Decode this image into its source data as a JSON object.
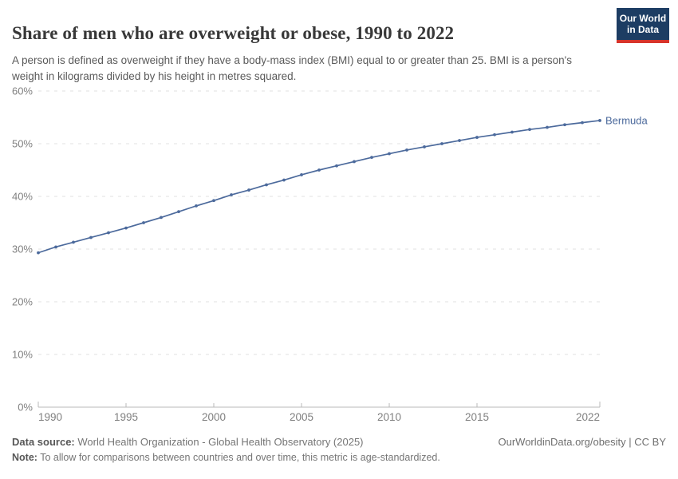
{
  "header": {
    "title": "Share of men who are overweight or obese, 1990 to 2022",
    "subtitle": "A person is defined as overweight if they have a body-mass index (BMI) equal to or greater than 25. BMI is a person's weight in kilograms divided by his height in metres squared.",
    "logo": {
      "line1": "Our World",
      "line2": "in Data",
      "bg_color": "#1d3d63",
      "bar_color": "#d7342b"
    }
  },
  "chart_data": {
    "type": "line",
    "title": "Share of men who are overweight or obese, 1990 to 2022",
    "xlabel": "",
    "ylabel": "",
    "xlim": [
      1990,
      2022
    ],
    "ylim": [
      0,
      60
    ],
    "grid": "horizontal-dashed",
    "legend_position": "end-of-line-label",
    "x_ticks": [
      1990,
      1995,
      2000,
      2005,
      2010,
      2015,
      2022
    ],
    "y_ticks": [
      0,
      10,
      20,
      30,
      40,
      50,
      60
    ],
    "y_tick_suffix": "%",
    "series": [
      {
        "name": "Bermuda",
        "color": "#4c6a9c",
        "x": [
          1990,
          1991,
          1992,
          1993,
          1994,
          1995,
          1996,
          1997,
          1998,
          1999,
          2000,
          2001,
          2002,
          2003,
          2004,
          2005,
          2006,
          2007,
          2008,
          2009,
          2010,
          2011,
          2012,
          2013,
          2014,
          2015,
          2016,
          2017,
          2018,
          2019,
          2020,
          2021,
          2022
        ],
        "values": [
          29.3,
          30.4,
          31.3,
          32.2,
          33.1,
          34.0,
          35.0,
          36.0,
          37.1,
          38.2,
          39.2,
          40.3,
          41.2,
          42.2,
          43.1,
          44.1,
          45.0,
          45.8,
          46.6,
          47.4,
          48.1,
          48.8,
          49.4,
          50.0,
          50.6,
          51.2,
          51.7,
          52.2,
          52.7,
          53.1,
          53.6,
          54.0,
          54.4
        ]
      }
    ],
    "colors": {
      "gridline": "#e2e2e2",
      "axis_line": "#b8b8b8",
      "tick_label": "#808080"
    }
  },
  "footer": {
    "datasource_label": "Data source:",
    "datasource_text": " World Health Organization - Global Health Observatory (2025)",
    "note_label": "Note:",
    "note_text": " To allow for comparisons between countries and over time, this metric is age-standardized.",
    "rights": "OurWorldinData.org/obesity | CC BY"
  }
}
